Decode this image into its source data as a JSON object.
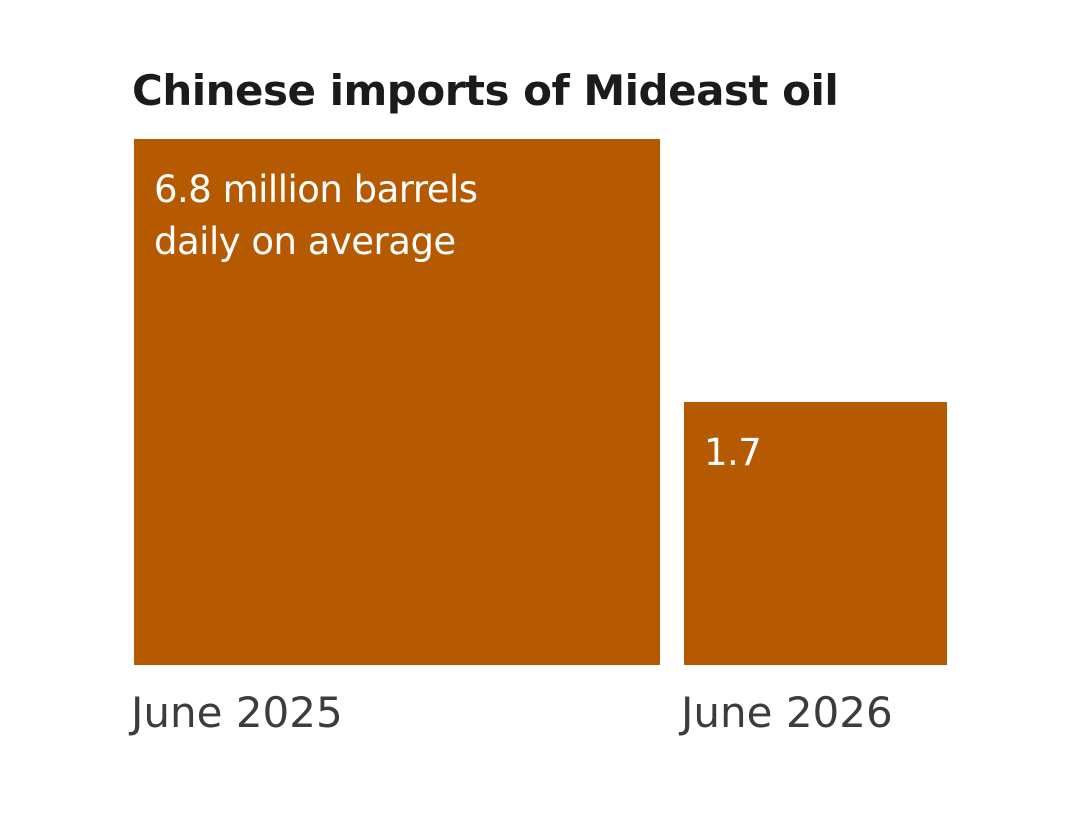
{
  "chart_data": {
    "type": "bar",
    "title": "Chinese imports of Mideast oil",
    "encoding": "square-area",
    "categories": [
      "June 2025",
      "June 2026"
    ],
    "values": [
      6.8,
      1.7
    ],
    "value_labels": [
      [
        "6.8 million barrels",
        "daily on average"
      ],
      [
        "1.7"
      ]
    ],
    "xlabel": "",
    "ylabel": "",
    "grid": false,
    "colors": {
      "bar": "#b55a00",
      "title": "#1b1b1b",
      "category_label": "#3c3c3c",
      "value_label": "#ffffff"
    }
  }
}
